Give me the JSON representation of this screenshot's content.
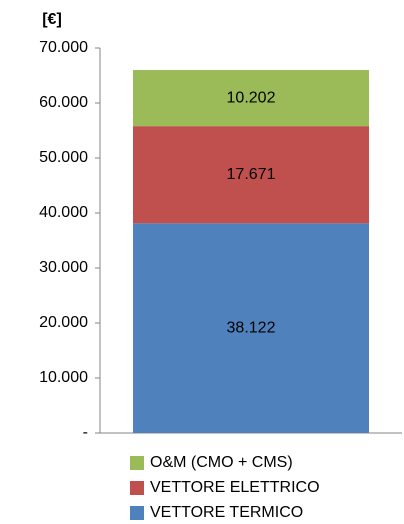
{
  "chart_data": {
    "type": "stacked_bar",
    "y_label": "[€]",
    "categories": [
      null
    ],
    "series": [
      {
        "name": "VETTORE TERMICO",
        "color": "#4f81bd",
        "values": [
          38122
        ],
        "value_labels": [
          "38.122"
        ]
      },
      {
        "name": "VETTORE ELETTRICO",
        "color": "#c0504d",
        "values": [
          17671
        ],
        "value_labels": [
          "17.671"
        ]
      },
      {
        "name": "O&M (CMO + CMS)",
        "color": "#9bbb59",
        "values": [
          10202
        ],
        "value_labels": [
          "10.202"
        ]
      }
    ],
    "ylim": [
      0,
      70000
    ],
    "yticks": [
      {
        "value": 0,
        "label": "-"
      },
      {
        "value": 10000,
        "label": "10.000"
      },
      {
        "value": 20000,
        "label": "20.000"
      },
      {
        "value": 30000,
        "label": "30.000"
      },
      {
        "value": 40000,
        "label": "40.000"
      },
      {
        "value": 50000,
        "label": "50.000"
      },
      {
        "value": 60000,
        "label": "60.000"
      },
      {
        "value": 70000,
        "label": "70.000"
      }
    ],
    "grid": false,
    "legend": "bottom"
  }
}
